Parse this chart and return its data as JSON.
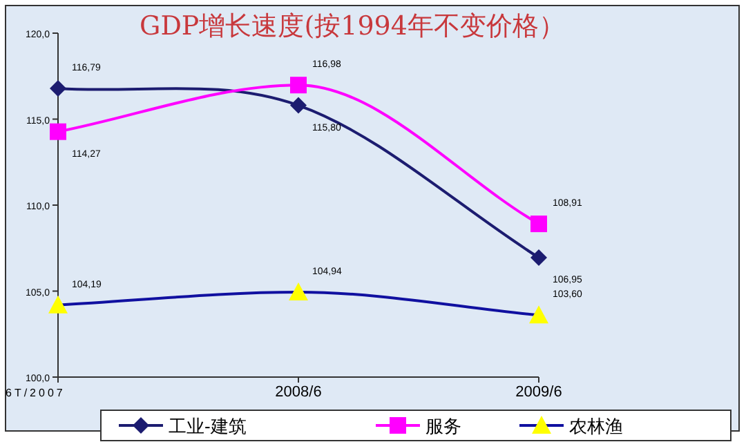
{
  "chart_data": {
    "type": "line",
    "title": "GDP增长速度(按1994年不变价格）",
    "categories": [
      "6T/2007",
      "2008/6",
      "2009/6"
    ],
    "ylim": [
      100,
      120
    ],
    "yticks": [
      {
        "value": 100,
        "label": "100,0"
      },
      {
        "value": 105,
        "label": "105,0"
      },
      {
        "value": 110,
        "label": "110,0"
      },
      {
        "value": 115,
        "label": "115,0"
      },
      {
        "value": 120,
        "label": "120,0"
      }
    ],
    "grid": false,
    "legend": "bottom",
    "series": [
      {
        "name": "工业-建筑",
        "color": "#1c1c70",
        "marker": "diamond",
        "values": [
          116.79,
          115.8,
          106.95
        ],
        "value_labels": [
          "116,79",
          "115,80",
          "106,95"
        ]
      },
      {
        "name": "服务",
        "color": "#ff00ff",
        "marker": "square",
        "values": [
          114.27,
          116.98,
          108.91
        ],
        "value_labels": [
          "114,27",
          "116,98",
          "108,91"
        ]
      },
      {
        "name": "农林渔",
        "color": "#1010a0",
        "marker": "triangle",
        "values": [
          104.19,
          104.94,
          103.6
        ],
        "value_labels": [
          "104,19",
          "104,94",
          "103,60"
        ]
      }
    ]
  }
}
